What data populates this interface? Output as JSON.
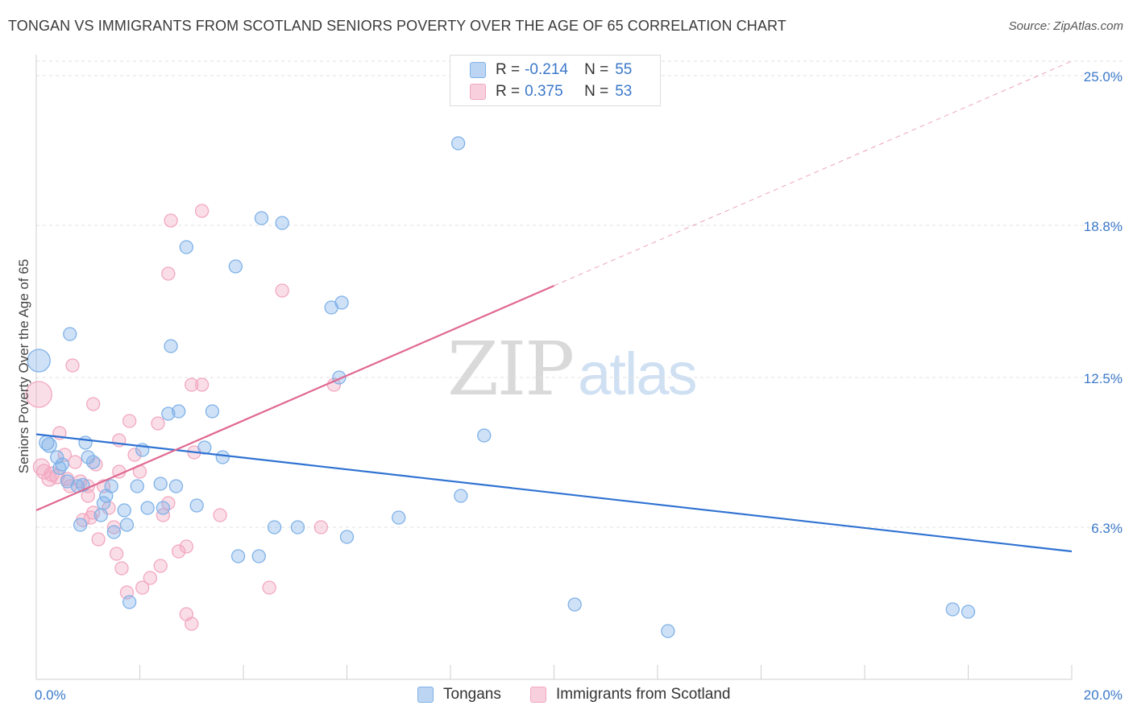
{
  "header": {
    "title": "TONGAN VS IMMIGRANTS FROM SCOTLAND SENIORS POVERTY OVER THE AGE OF 65 CORRELATION CHART",
    "source_label": "Source:",
    "source_value": "ZipAtlas.com"
  },
  "watermark": {
    "zip": "ZIP",
    "atlas": "atlas"
  },
  "legend": {
    "rows": [
      {
        "r_label": "R =",
        "r_value": "-0.214",
        "n_label": "N =",
        "n_value": "55",
        "color": "#7fb1e8"
      },
      {
        "r_label": "R =",
        "r_value": "0.375",
        "n_label": "N =",
        "n_value": "53",
        "color": "#f2a7bf"
      }
    ],
    "bottom": [
      {
        "label": "Tongans",
        "color": "#7fb1e8"
      },
      {
        "label": "Immigrants from Scotland",
        "color": "#f2a7bf"
      }
    ]
  },
  "chart_data": {
    "type": "scatter",
    "title": "TONGAN VS IMMIGRANTS FROM SCOTLAND SENIORS POVERTY OVER THE AGE OF 65 CORRELATION CHART",
    "xlabel": "",
    "ylabel": "Seniors Poverty Over the Age of 65",
    "xlim": [
      0,
      20
    ],
    "ylim": [
      0,
      25.6
    ],
    "x_tick_labels": [
      "0.0%",
      "20.0%"
    ],
    "y_ticks": [
      6.3,
      12.5,
      18.8,
      25.0
    ],
    "y_tick_labels": [
      "6.3%",
      "12.5%",
      "18.8%",
      "25.0%"
    ],
    "grid": true,
    "legend_position": "top-center",
    "series": [
      {
        "name": "Tongans",
        "color": "#7fb1e8",
        "line_color": "#2f72d2",
        "trend": {
          "x": [
            0,
            20
          ],
          "y": [
            10.15,
            5.3
          ]
        },
        "trend_extension": null,
        "points": [
          {
            "x": 0.05,
            "y": 13.2,
            "s": 14
          },
          {
            "x": 0.2,
            "y": 9.8,
            "s": 9
          },
          {
            "x": 0.25,
            "y": 9.7,
            "s": 9
          },
          {
            "x": 0.4,
            "y": 9.2,
            "s": 8
          },
          {
            "x": 0.5,
            "y": 8.9,
            "s": 8
          },
          {
            "x": 0.45,
            "y": 8.75,
            "s": 8
          },
          {
            "x": 0.6,
            "y": 8.2,
            "s": 8
          },
          {
            "x": 0.8,
            "y": 8.0,
            "s": 8
          },
          {
            "x": 0.85,
            "y": 6.4,
            "s": 8
          },
          {
            "x": 0.95,
            "y": 9.8,
            "s": 8
          },
          {
            "x": 1.0,
            "y": 9.2,
            "s": 8
          },
          {
            "x": 1.3,
            "y": 7.3,
            "s": 8
          },
          {
            "x": 1.35,
            "y": 7.6,
            "s": 8
          },
          {
            "x": 1.45,
            "y": 8.0,
            "s": 8
          },
          {
            "x": 1.5,
            "y": 6.1,
            "s": 8
          },
          {
            "x": 1.7,
            "y": 7.0,
            "s": 8
          },
          {
            "x": 1.75,
            "y": 6.4,
            "s": 8
          },
          {
            "x": 1.8,
            "y": 3.2,
            "s": 8
          },
          {
            "x": 1.95,
            "y": 8.0,
            "s": 8
          },
          {
            "x": 2.05,
            "y": 9.5,
            "s": 8
          },
          {
            "x": 2.15,
            "y": 7.1,
            "s": 8
          },
          {
            "x": 2.4,
            "y": 8.1,
            "s": 8
          },
          {
            "x": 2.45,
            "y": 7.1,
            "s": 8
          },
          {
            "x": 2.6,
            "y": 13.8,
            "s": 8
          },
          {
            "x": 2.55,
            "y": 11.0,
            "s": 8
          },
          {
            "x": 2.7,
            "y": 8.0,
            "s": 8
          },
          {
            "x": 2.75,
            "y": 11.1,
            "s": 8
          },
          {
            "x": 2.9,
            "y": 17.9,
            "s": 8
          },
          {
            "x": 3.1,
            "y": 7.2,
            "s": 8
          },
          {
            "x": 3.25,
            "y": 9.6,
            "s": 8
          },
          {
            "x": 3.4,
            "y": 11.1,
            "s": 8
          },
          {
            "x": 3.6,
            "y": 9.2,
            "s": 8
          },
          {
            "x": 3.85,
            "y": 17.1,
            "s": 8
          },
          {
            "x": 3.9,
            "y": 5.1,
            "s": 8
          },
          {
            "x": 4.3,
            "y": 5.1,
            "s": 8
          },
          {
            "x": 4.35,
            "y": 19.1,
            "s": 8
          },
          {
            "x": 4.6,
            "y": 6.3,
            "s": 8
          },
          {
            "x": 4.75,
            "y": 18.9,
            "s": 8
          },
          {
            "x": 5.05,
            "y": 6.3,
            "s": 8
          },
          {
            "x": 5.7,
            "y": 15.4,
            "s": 8
          },
          {
            "x": 5.9,
            "y": 15.6,
            "s": 8
          },
          {
            "x": 5.85,
            "y": 12.5,
            "s": 8
          },
          {
            "x": 6.0,
            "y": 5.9,
            "s": 8
          },
          {
            "x": 7.0,
            "y": 6.7,
            "s": 8
          },
          {
            "x": 8.15,
            "y": 22.2,
            "s": 8
          },
          {
            "x": 8.2,
            "y": 7.6,
            "s": 8
          },
          {
            "x": 8.65,
            "y": 10.1,
            "s": 8
          },
          {
            "x": 10.4,
            "y": 3.1,
            "s": 8
          },
          {
            "x": 12.2,
            "y": 2.0,
            "s": 8
          },
          {
            "x": 17.7,
            "y": 2.9,
            "s": 8
          },
          {
            "x": 18.0,
            "y": 2.8,
            "s": 8
          },
          {
            "x": 1.1,
            "y": 9.0,
            "s": 8
          },
          {
            "x": 0.65,
            "y": 14.3,
            "s": 8
          },
          {
            "x": 0.9,
            "y": 8.05,
            "s": 8
          },
          {
            "x": 1.25,
            "y": 6.8,
            "s": 8
          }
        ]
      },
      {
        "name": "Immigrants from Scotland",
        "color": "#f2a7bf",
        "line_color": "#e06890",
        "trend": {
          "x": [
            0,
            10
          ],
          "y": [
            7.0,
            16.3
          ]
        },
        "trend_extension": {
          "x": [
            10,
            20
          ],
          "y": [
            16.3,
            25.6
          ]
        },
        "points": [
          {
            "x": 0.05,
            "y": 11.8,
            "s": 16
          },
          {
            "x": 0.1,
            "y": 8.8,
            "s": 10
          },
          {
            "x": 0.15,
            "y": 8.6,
            "s": 9
          },
          {
            "x": 0.25,
            "y": 8.3,
            "s": 9
          },
          {
            "x": 0.3,
            "y": 8.5,
            "s": 9
          },
          {
            "x": 0.4,
            "y": 8.4,
            "s": 9
          },
          {
            "x": 0.45,
            "y": 10.2,
            "s": 8
          },
          {
            "x": 0.55,
            "y": 9.3,
            "s": 8
          },
          {
            "x": 0.6,
            "y": 8.3,
            "s": 8
          },
          {
            "x": 0.65,
            "y": 8.0,
            "s": 8
          },
          {
            "x": 0.7,
            "y": 13.0,
            "s": 8
          },
          {
            "x": 0.75,
            "y": 9.0,
            "s": 8
          },
          {
            "x": 0.85,
            "y": 8.2,
            "s": 8
          },
          {
            "x": 0.9,
            "y": 6.6,
            "s": 8
          },
          {
            "x": 1.0,
            "y": 8.0,
            "s": 8
          },
          {
            "x": 1.05,
            "y": 6.7,
            "s": 8
          },
          {
            "x": 1.1,
            "y": 6.9,
            "s": 8
          },
          {
            "x": 1.15,
            "y": 8.9,
            "s": 8
          },
          {
            "x": 1.2,
            "y": 5.8,
            "s": 8
          },
          {
            "x": 1.1,
            "y": 11.4,
            "s": 8
          },
          {
            "x": 1.3,
            "y": 8.0,
            "s": 8
          },
          {
            "x": 1.4,
            "y": 7.1,
            "s": 8
          },
          {
            "x": 1.5,
            "y": 6.3,
            "s": 8
          },
          {
            "x": 1.55,
            "y": 5.2,
            "s": 8
          },
          {
            "x": 1.6,
            "y": 8.6,
            "s": 8
          },
          {
            "x": 1.65,
            "y": 4.6,
            "s": 8
          },
          {
            "x": 1.75,
            "y": 3.6,
            "s": 8
          },
          {
            "x": 1.8,
            "y": 10.7,
            "s": 8
          },
          {
            "x": 1.9,
            "y": 9.3,
            "s": 8
          },
          {
            "x": 2.0,
            "y": 8.6,
            "s": 8
          },
          {
            "x": 2.2,
            "y": 4.2,
            "s": 8
          },
          {
            "x": 2.35,
            "y": 10.6,
            "s": 8
          },
          {
            "x": 2.45,
            "y": 6.8,
            "s": 8
          },
          {
            "x": 2.55,
            "y": 16.8,
            "s": 8
          },
          {
            "x": 2.75,
            "y": 5.3,
            "s": 8
          },
          {
            "x": 2.9,
            "y": 2.7,
            "s": 8
          },
          {
            "x": 3.0,
            "y": 2.3,
            "s": 8
          },
          {
            "x": 3.05,
            "y": 9.4,
            "s": 8
          },
          {
            "x": 3.2,
            "y": 12.2,
            "s": 8
          },
          {
            "x": 3.2,
            "y": 19.4,
            "s": 8
          },
          {
            "x": 3.55,
            "y": 6.8,
            "s": 8
          },
          {
            "x": 4.5,
            "y": 3.8,
            "s": 8
          },
          {
            "x": 4.75,
            "y": 16.1,
            "s": 8
          },
          {
            "x": 5.5,
            "y": 6.3,
            "s": 8
          },
          {
            "x": 5.75,
            "y": 12.2,
            "s": 8
          },
          {
            "x": 2.55,
            "y": 7.3,
            "s": 8
          },
          {
            "x": 2.4,
            "y": 4.7,
            "s": 8
          },
          {
            "x": 1.0,
            "y": 7.6,
            "s": 8
          },
          {
            "x": 2.6,
            "y": 19.0,
            "s": 8
          },
          {
            "x": 2.9,
            "y": 5.5,
            "s": 8
          },
          {
            "x": 2.05,
            "y": 3.8,
            "s": 8
          },
          {
            "x": 1.6,
            "y": 9.9,
            "s": 8
          },
          {
            "x": 3.0,
            "y": 12.2,
            "s": 8
          }
        ]
      }
    ]
  }
}
